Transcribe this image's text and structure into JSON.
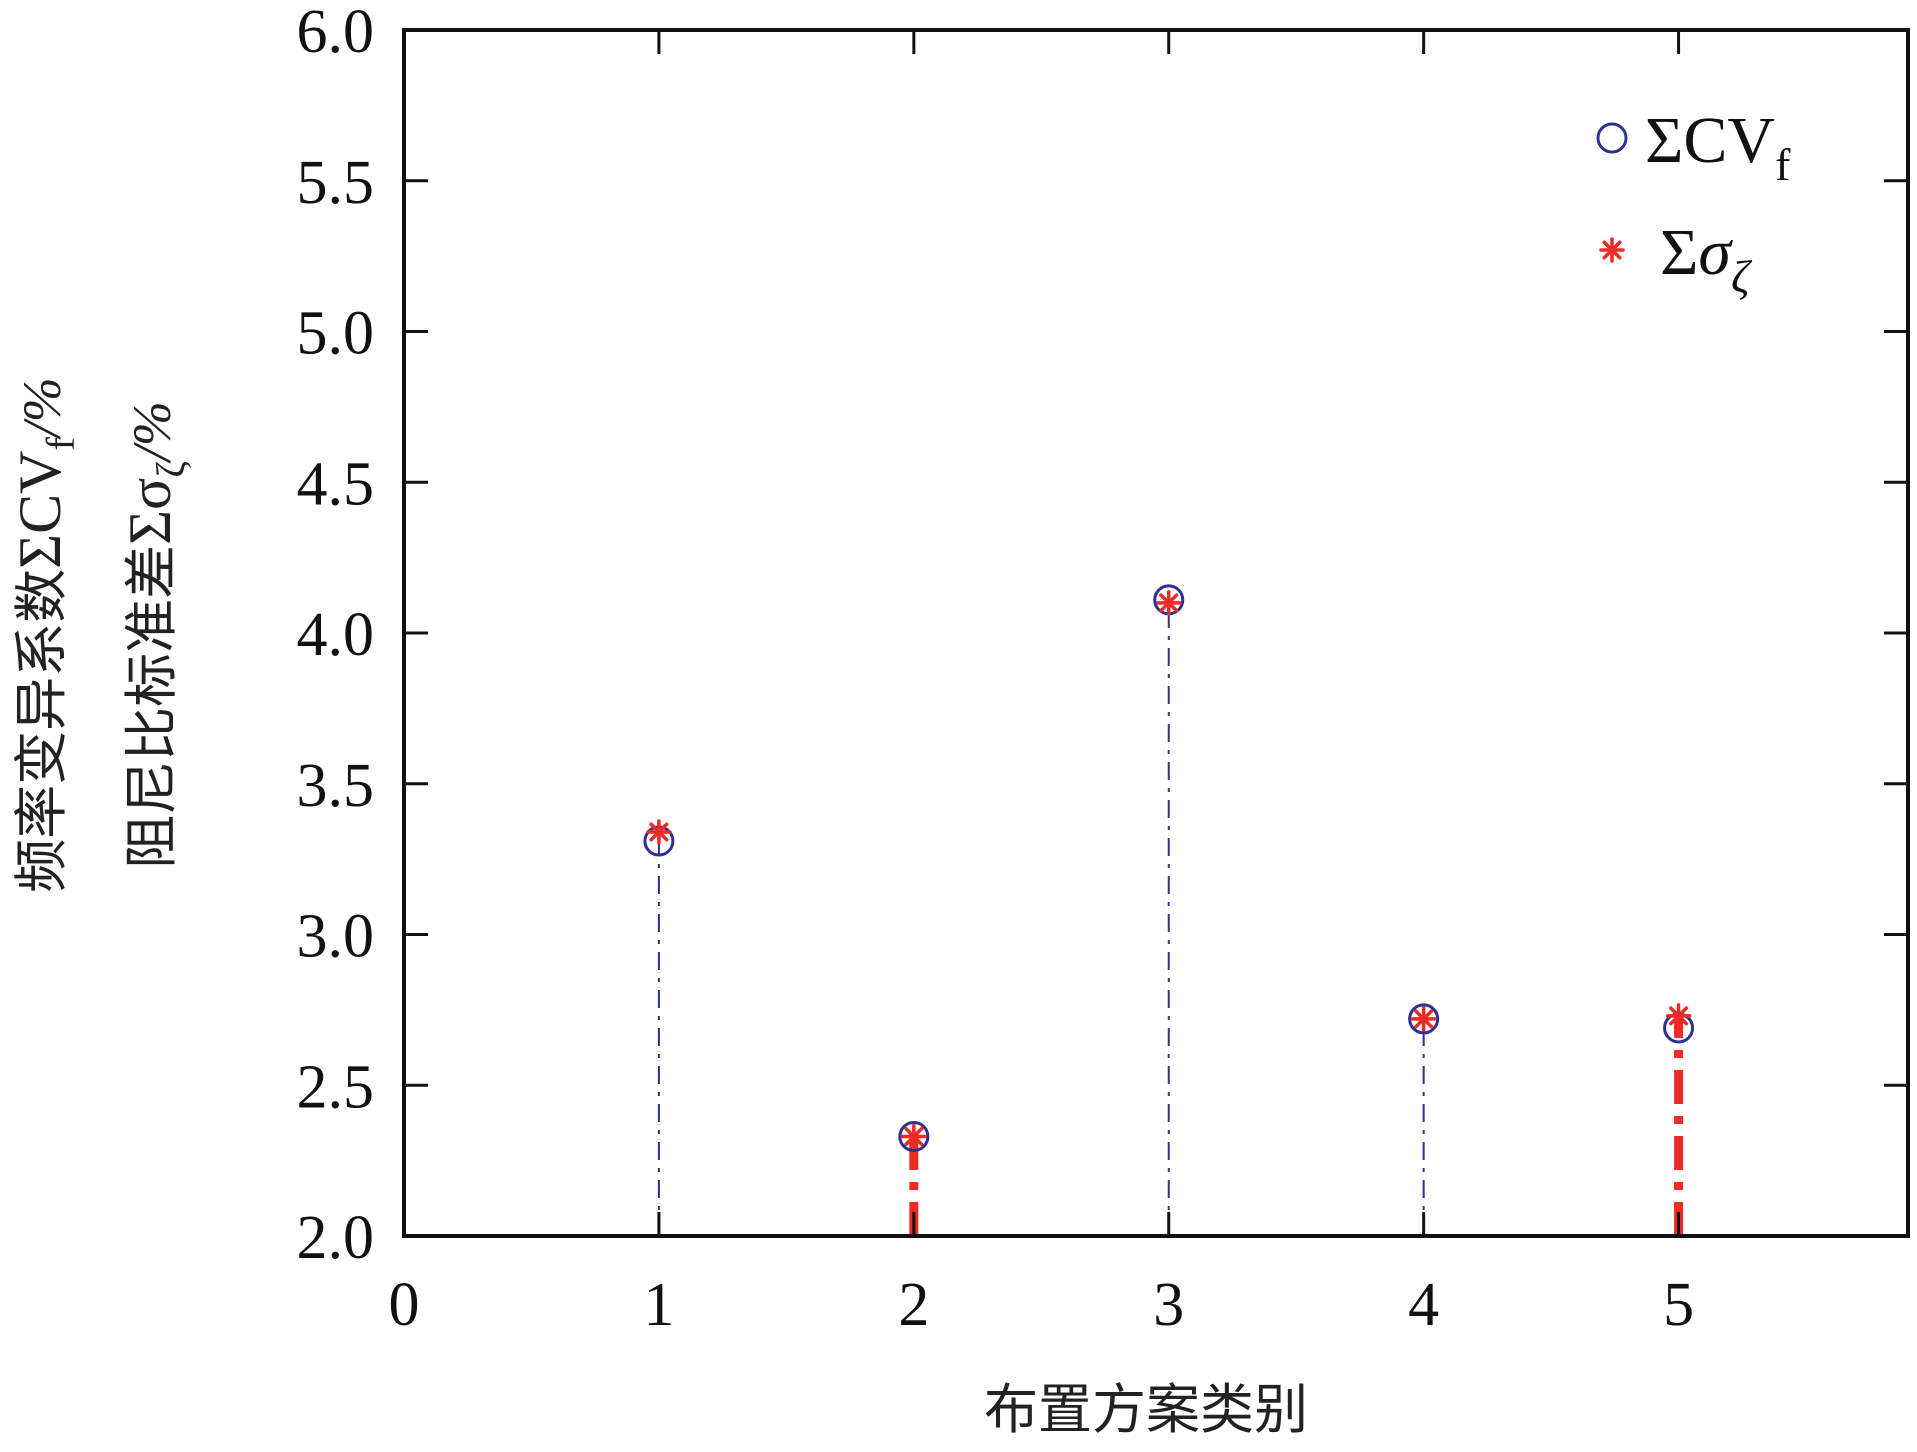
{
  "chart_data": {
    "type": "scatter",
    "x": [
      1,
      2,
      3,
      4,
      5
    ],
    "xlim": [
      0,
      5.9
    ],
    "ylim": [
      2.0,
      6.0
    ],
    "xticks": [
      "0",
      "1",
      "2",
      "3",
      "4",
      "5"
    ],
    "yticks": [
      "2.0",
      "2.5",
      "3.0",
      "3.5",
      "4.0",
      "4.5",
      "5.0",
      "5.5",
      "6.0"
    ],
    "xlabel": "布置方案类别",
    "ylabel": {
      "line1": {
        "prefix": "频率变异系数",
        "symbol": "ΣCV",
        "sub": "f",
        "suffix": "/%"
      },
      "line2": {
        "prefix": "阻尼比标准差",
        "symbol": "Σσ",
        "sub": "ζ",
        "suffix": "/%"
      }
    },
    "grid": false,
    "legend_position": "top-right",
    "series": [
      {
        "name": "ΣCVf",
        "legend": {
          "main": "ΣCV",
          "sub": "f"
        },
        "marker": "circle",
        "color": "#2e3192",
        "values": [
          3.31,
          2.33,
          4.11,
          2.72,
          2.69
        ]
      },
      {
        "name": "Σσζ",
        "legend": {
          "main": "Σσ",
          "sub": "ζ"
        },
        "marker": "asterisk",
        "color": "#ee2a24",
        "values": [
          3.34,
          2.33,
          4.1,
          2.72,
          2.73
        ]
      }
    ]
  }
}
